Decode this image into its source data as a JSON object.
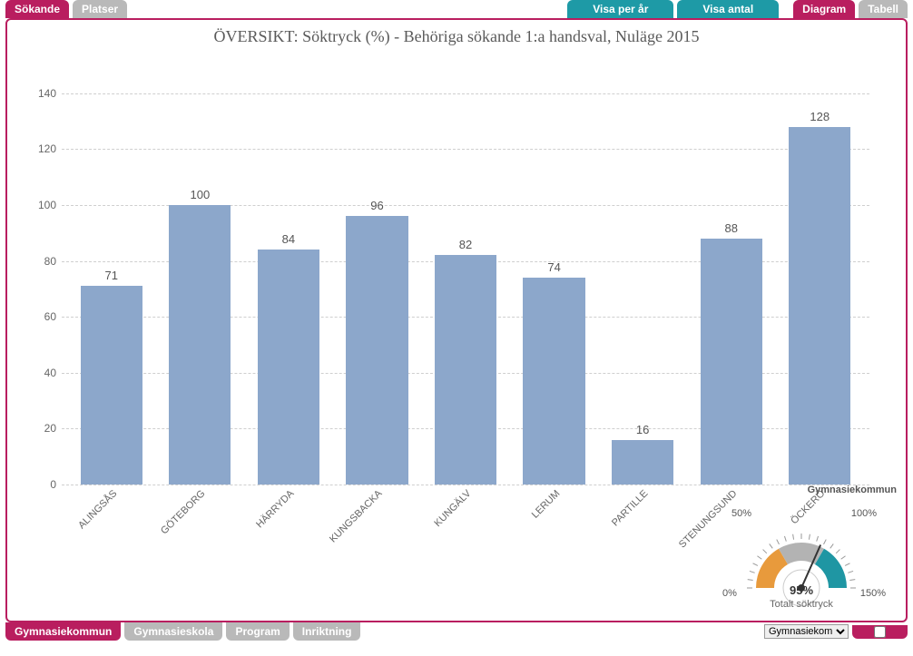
{
  "top_tabs": {
    "sokande": "Sökande",
    "platser": "Platser",
    "visa_per_ar": "Visa per år",
    "visa_antal": "Visa antal",
    "diagram": "Diagram",
    "tabell": "Tabell"
  },
  "bottom_tabs": {
    "gymnasiekommun": "Gymnasiekommun",
    "gymnasieskola": "Gymnasieskola",
    "program": "Program",
    "inriktning": "Inriktning"
  },
  "chart": {
    "type": "bar",
    "title": "ÖVERSIKT: Söktryck (%) - Behöriga sökande 1:a handsval, Nuläge 2015",
    "title_fontsize": 18,
    "title_color": "#5a5a5a",
    "categories": [
      "ALINGSÅS",
      "GÖTEBORG",
      "HÄRRYDA",
      "KUNGSBACKA",
      "KUNGÄLV",
      "LERUM",
      "PARTILLE",
      "STENUNGSUND",
      "ÖCKERÖ"
    ],
    "values": [
      71,
      100,
      84,
      96,
      82,
      74,
      16,
      88,
      128
    ],
    "bar_color": "#8ca7cb",
    "bar_width": 0.7,
    "ylim": [
      0,
      150
    ],
    "yticks": [
      0,
      20,
      40,
      60,
      80,
      100,
      120,
      140
    ],
    "grid_color": "#cfcfcf",
    "grid_dash": true,
    "background_color": "#ffffff",
    "tick_fontsize": 12,
    "tick_color": "#666666",
    "xlabel_rotation": -45,
    "axis_title": "Gymnasiekommun",
    "axis_title_fontsize": 11,
    "value_label_fontsize": 13,
    "value_label_color": "#555555"
  },
  "gauge": {
    "value_pct": 95,
    "value_label": "95%",
    "caption": "Totalt söktryck",
    "scale_labels": {
      "min": "0%",
      "q1": "50%",
      "q3": "100%",
      "max": "150%"
    },
    "segment_colors": [
      "#e89a3c",
      "#b3b3b3",
      "#1f96a3"
    ],
    "needle_color": "#333333",
    "background": "#ffffff"
  },
  "footer_select": {
    "selected": "Gymnasiekom"
  },
  "colors": {
    "accent_pink": "#b91e5f",
    "inactive_gray": "#b9b9b9",
    "teal": "#1e9aa6"
  }
}
